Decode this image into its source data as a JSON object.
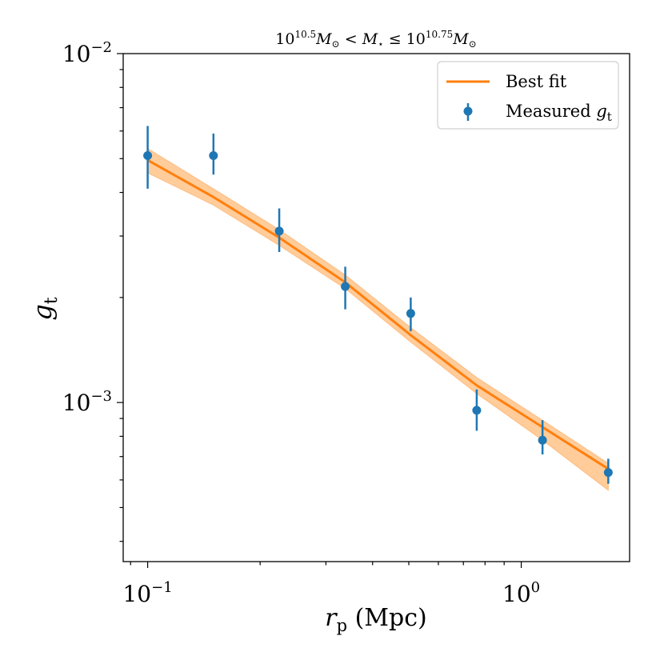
{
  "chart_data": {
    "type": "scatter",
    "title": "10^10.5 M⊙ < M⋆ ≤ 10^10.75 M⊙",
    "title_parts": {
      "base1": "10",
      "exp1": "10.5",
      "sym1": "M",
      "sub1": "⊙",
      "lt": " < ",
      "sym2": "M",
      "sub2": "⋆",
      "le": " ≤ ",
      "base2": "10",
      "exp2": "10.75",
      "sym3": "M",
      "sub3": "⊙"
    },
    "xlabel": "r_p (Mpc)",
    "xlabel_parts": {
      "sym": "r",
      "sub": "p",
      "unit": " (Mpc)"
    },
    "ylabel": "g_t",
    "ylabel_parts": {
      "sym": "g",
      "sub": "t"
    },
    "xscale": "log",
    "yscale": "log",
    "xlim": [
      0.086,
      1.95
    ],
    "ylim": [
      0.00035,
      0.01
    ],
    "x_ticks": [
      {
        "value": 0.1,
        "base": "10",
        "exp": "−1"
      },
      {
        "value": 1,
        "base": "10",
        "exp": "0"
      }
    ],
    "y_ticks": [
      {
        "value": 0.001,
        "base": "10",
        "exp": "−3"
      },
      {
        "value": 0.01,
        "base": "10",
        "exp": "−2"
      }
    ],
    "legend_position": "top-right",
    "series": [
      {
        "name": "Best fit",
        "legend_label": "Best fit",
        "kind": "line",
        "color": "#ff7f0e",
        "band_color": "#ffbb78",
        "x": [
          0.1,
          0.15,
          0.225,
          0.338,
          0.506,
          0.76,
          1.14,
          1.71
        ],
        "y": [
          0.00495,
          0.00388,
          0.00297,
          0.00221,
          0.00156,
          0.00112,
          0.00085,
          0.000645
        ],
        "y_low": [
          0.00455,
          0.00368,
          0.00282,
          0.00212,
          0.00149,
          0.00106,
          0.00078,
          0.00056
        ],
        "y_high": [
          0.00535,
          0.0041,
          0.00313,
          0.00232,
          0.00164,
          0.00118,
          0.00089,
          0.00067
        ]
      },
      {
        "name": "Measured g_t",
        "legend_label": "Measured ",
        "legend_sym": "g",
        "legend_sub": "t",
        "kind": "errorbar",
        "color": "#1f77b4",
        "x": [
          0.1,
          0.15,
          0.225,
          0.338,
          0.506,
          0.76,
          1.14,
          1.71
        ],
        "y": [
          0.0051,
          0.0051,
          0.0031,
          0.00215,
          0.0018,
          0.00095,
          0.00078,
          0.00063
        ],
        "yerr_low": [
          0.0041,
          0.0045,
          0.0027,
          0.00185,
          0.0016,
          0.00083,
          0.00071,
          0.000585
        ],
        "yerr_high": [
          0.0062,
          0.0059,
          0.0036,
          0.00245,
          0.002,
          0.00109,
          0.00089,
          0.00069
        ]
      }
    ]
  }
}
